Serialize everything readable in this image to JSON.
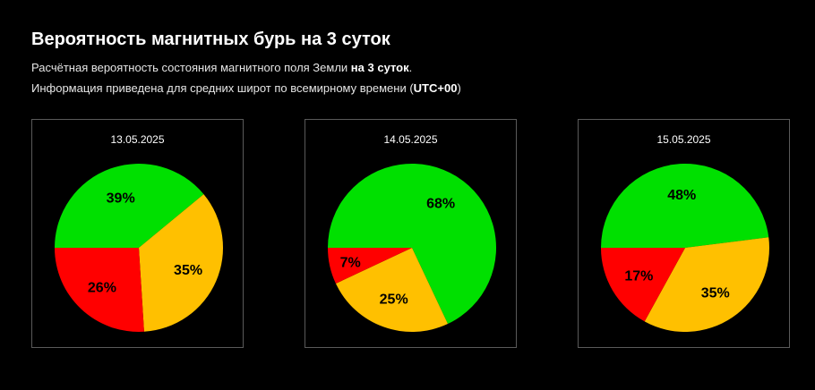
{
  "header": {
    "title": "Вероятность магнитных бурь на 3 суток",
    "line1_prefix": "Расчётная вероятность состояния магнитного поля Земли ",
    "line1_bold": "на 3 суток",
    "line1_suffix": ".",
    "line2_prefix": "Информация приведена для средних широт по всемирному времени (",
    "line2_bold": "UTC+00",
    "line2_suffix": ")"
  },
  "colors": {
    "green": "#00e000",
    "yellow": "#ffc000",
    "red": "#ff0000"
  },
  "chart_data": [
    {
      "type": "pie",
      "title": "13.05.2025",
      "slices": [
        {
          "color": "green",
          "value": 39,
          "label": "39%"
        },
        {
          "color": "yellow",
          "value": 35,
          "label": "35%"
        },
        {
          "color": "red",
          "value": 26,
          "label": "26%"
        }
      ]
    },
    {
      "type": "pie",
      "title": "14.05.2025",
      "slices": [
        {
          "color": "green",
          "value": 68,
          "label": "68%"
        },
        {
          "color": "yellow",
          "value": 25,
          "label": "25%"
        },
        {
          "color": "red",
          "value": 7,
          "label": "7%"
        }
      ]
    },
    {
      "type": "pie",
      "title": "15.05.2025",
      "slices": [
        {
          "color": "green",
          "value": 48,
          "label": "48%"
        },
        {
          "color": "yellow",
          "value": 35,
          "label": "35%"
        },
        {
          "color": "red",
          "value": 17,
          "label": "17%"
        }
      ]
    }
  ]
}
